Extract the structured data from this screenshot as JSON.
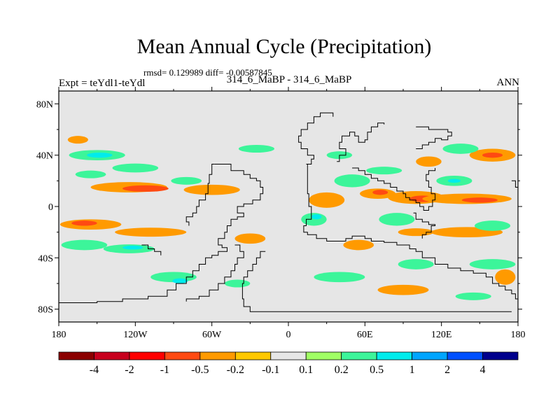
{
  "title": "Mean Annual Cycle (Precipitation)",
  "stats": "rmsd= 0.129989 diff= -0.00587845",
  "left_label": "Expt = teYdl1-teYdl",
  "center_label": "314_6_MaBP - 314_6_MaBP",
  "right_label": "ANN",
  "colors": {
    "background_fill": "#e6e6e6",
    "coast": "#000000"
  },
  "chart_data": {
    "type": "heatmap",
    "title": "Mean Annual Cycle (Precipitation)",
    "lon_range": [
      -180,
      180
    ],
    "lat_range": [
      -90,
      90
    ],
    "lon_ticks": [
      -180,
      -120,
      -60,
      0,
      60,
      120,
      180
    ],
    "lon_tick_labels": [
      "180",
      "120W",
      "60W",
      "0",
      "60E",
      "120E",
      "180"
    ],
    "lat_ticks": [
      80,
      40,
      0,
      -40,
      -80
    ],
    "lat_tick_labels": [
      "80N",
      "40N",
      "0",
      "40S",
      "80S"
    ],
    "colorbar": {
      "labels": [
        "-4",
        "-2",
        "-1",
        "-0.5",
        "-0.2",
        "-0.1",
        "0.1",
        "0.2",
        "0.5",
        "1",
        "2",
        "4"
      ],
      "colors": [
        "#8b0000",
        "#c8001e",
        "#ff0000",
        "#ff4a12",
        "#ff9a00",
        "#ffc800",
        "#e6e6e6",
        "#a0ff64",
        "#3cf59a",
        "#00ecec",
        "#00a5ff",
        "#0050ff",
        "#00008c"
      ]
    },
    "anomaly_regions": [
      {
        "label": "-0.2",
        "lon": -125,
        "lat": 15,
        "rx": 30,
        "ry": 4
      },
      {
        "label": "-0.5",
        "lon": -112,
        "lat": 14,
        "rx": 18,
        "ry": 2.5
      },
      {
        "label": "-0.2",
        "lon": -60,
        "lat": 13,
        "rx": 22,
        "ry": 4
      },
      {
        "label": "-0.2",
        "lon": -155,
        "lat": -14,
        "rx": 24,
        "ry": 4
      },
      {
        "label": "-0.5",
        "lon": -160,
        "lat": -13,
        "rx": 10,
        "ry": 2
      },
      {
        "label": "-0.2",
        "lon": -108,
        "lat": -20,
        "rx": 28,
        "ry": 3.5
      },
      {
        "label": "-0.2",
        "lon": -165,
        "lat": 52,
        "rx": 8,
        "ry": 3
      },
      {
        "label": "0.2",
        "lon": -150,
        "lat": 40,
        "rx": 22,
        "ry": 4
      },
      {
        "label": "0.5",
        "lon": -148,
        "lat": 40,
        "rx": 10,
        "ry": 2
      },
      {
        "label": "0.2",
        "lon": -120,
        "lat": 30,
        "rx": 18,
        "ry": 3.5
      },
      {
        "label": "0.2",
        "lon": -155,
        "lat": 25,
        "rx": 12,
        "ry": 3
      },
      {
        "label": "0.2",
        "lon": -160,
        "lat": -30,
        "rx": 18,
        "ry": 4
      },
      {
        "label": "0.2",
        "lon": -125,
        "lat": -33,
        "rx": 20,
        "ry": 3.5
      },
      {
        "label": "0.5",
        "lon": -122,
        "lat": -32,
        "rx": 8,
        "ry": 1.5
      },
      {
        "label": "0.2",
        "lon": -80,
        "lat": 20,
        "rx": 12,
        "ry": 3
      },
      {
        "label": "0.2",
        "lon": -90,
        "lat": -55,
        "rx": 18,
        "ry": 4
      },
      {
        "label": "0.5",
        "lon": -85,
        "lat": -58,
        "rx": 6,
        "ry": 2
      },
      {
        "label": "0.2",
        "lon": -40,
        "lat": -60,
        "rx": 10,
        "ry": 3
      },
      {
        "label": "0.2",
        "lon": -25,
        "lat": 45,
        "rx": 14,
        "ry": 3
      },
      {
        "label": "-0.2",
        "lon": -30,
        "lat": -25,
        "rx": 12,
        "ry": 4
      },
      {
        "label": "-0.2",
        "lon": 30,
        "lat": 5,
        "rx": 14,
        "ry": 6
      },
      {
        "label": "0.2",
        "lon": 20,
        "lat": -10,
        "rx": 10,
        "ry": 5
      },
      {
        "label": "0.5",
        "lon": 22,
        "lat": -8,
        "rx": 4,
        "ry": 2
      },
      {
        "label": "0.2",
        "lon": 50,
        "lat": 20,
        "rx": 14,
        "ry": 5
      },
      {
        "label": "-0.2",
        "lon": 70,
        "lat": 10,
        "rx": 14,
        "ry": 4
      },
      {
        "label": "-0.5",
        "lon": 72,
        "lat": 11,
        "rx": 6,
        "ry": 2
      },
      {
        "label": "0.2",
        "lon": 85,
        "lat": -10,
        "rx": 14,
        "ry": 5
      },
      {
        "label": "0.2",
        "lon": 75,
        "lat": 28,
        "rx": 14,
        "ry": 3
      },
      {
        "label": "-0.2",
        "lon": 100,
        "lat": 7,
        "rx": 22,
        "ry": 5
      },
      {
        "label": "-0.5",
        "lon": 105,
        "lat": 6,
        "rx": 10,
        "ry": 2.5
      },
      {
        "label": "-0.2",
        "lon": 140,
        "lat": 6,
        "rx": 35,
        "ry": 4
      },
      {
        "label": "-0.5",
        "lon": 150,
        "lat": 5,
        "rx": 14,
        "ry": 2
      },
      {
        "label": "-0.2",
        "lon": 160,
        "lat": 40,
        "rx": 18,
        "ry": 5
      },
      {
        "label": "-0.5",
        "lon": 160,
        "lat": 40,
        "rx": 8,
        "ry": 2
      },
      {
        "label": "0.2",
        "lon": 135,
        "lat": 45,
        "rx": 14,
        "ry": 4
      },
      {
        "label": "0.2",
        "lon": 130,
        "lat": 20,
        "rx": 14,
        "ry": 4
      },
      {
        "label": "0.5",
        "lon": 130,
        "lat": 20,
        "rx": 5,
        "ry": 1.5
      },
      {
        "label": "-0.2",
        "lon": 110,
        "lat": 35,
        "rx": 10,
        "ry": 4
      },
      {
        "label": "-0.2",
        "lon": 140,
        "lat": -20,
        "rx": 28,
        "ry": 4
      },
      {
        "label": "0.2",
        "lon": 160,
        "lat": -15,
        "rx": 14,
        "ry": 4
      },
      {
        "label": "-0.2",
        "lon": 100,
        "lat": -20,
        "rx": 14,
        "ry": 3
      },
      {
        "label": "0.2",
        "lon": 100,
        "lat": -45,
        "rx": 14,
        "ry": 4
      },
      {
        "label": "0.2",
        "lon": 160,
        "lat": -45,
        "rx": 18,
        "ry": 4
      },
      {
        "label": "-0.2",
        "lon": 55,
        "lat": -30,
        "rx": 12,
        "ry": 4
      },
      {
        "label": "0.2",
        "lon": 40,
        "lat": -55,
        "rx": 20,
        "ry": 4
      },
      {
        "label": "-0.2",
        "lon": 90,
        "lat": -65,
        "rx": 20,
        "ry": 4
      },
      {
        "label": "-0.2",
        "lon": 170,
        "lat": -55,
        "rx": 8,
        "ry": 6
      },
      {
        "label": "0.2",
        "lon": 145,
        "lat": -70,
        "rx": 14,
        "ry": 3
      },
      {
        "label": "0.2",
        "lon": 40,
        "lat": 40,
        "rx": 10,
        "ry": 3
      }
    ]
  },
  "coastlines": [
    [
      [
        -58,
        33
      ],
      [
        -50,
        33
      ],
      [
        -45,
        28
      ],
      [
        -40,
        28
      ],
      [
        -35,
        25
      ],
      [
        -30,
        22
      ],
      [
        -25,
        20
      ],
      [
        -22,
        15
      ],
      [
        -20,
        10
      ],
      [
        -22,
        5
      ],
      [
        -28,
        2
      ],
      [
        -35,
        0
      ],
      [
        -40,
        -5
      ],
      [
        -35,
        -8
      ],
      [
        -40,
        -10
      ],
      [
        -45,
        -15
      ],
      [
        -48,
        -20
      ],
      [
        -50,
        -25
      ],
      [
        -55,
        -30
      ],
      [
        -52,
        -32
      ],
      [
        -48,
        -35
      ],
      [
        -55,
        -38
      ],
      [
        -60,
        -40
      ],
      [
        -65,
        -45
      ],
      [
        -70,
        -50
      ],
      [
        -75,
        -55
      ],
      [
        -80,
        -60
      ],
      [
        -88,
        -65
      ],
      [
        -95,
        -70
      ],
      [
        -110,
        -72
      ],
      [
        -130,
        -74
      ],
      [
        -150,
        -75
      ],
      [
        -180,
        -78
      ]
    ],
    [
      [
        -58,
        33
      ],
      [
        -60,
        25
      ],
      [
        -62,
        18
      ],
      [
        -63,
        10
      ],
      [
        -65,
        5
      ],
      [
        -70,
        0
      ],
      [
        -72,
        -5
      ],
      [
        -75,
        -8
      ],
      [
        -80,
        -12
      ],
      [
        -78,
        -15
      ]
    ],
    [
      [
        -42,
        -30
      ],
      [
        -38,
        -35
      ],
      [
        -35,
        -40
      ],
      [
        -40,
        -45
      ],
      [
        -42,
        -50
      ],
      [
        -45,
        -55
      ],
      [
        -50,
        -60
      ],
      [
        -55,
        -65
      ],
      [
        -62,
        -70
      ],
      [
        -70,
        -72
      ],
      [
        -80,
        -74
      ]
    ],
    [
      [
        -18,
        -35
      ],
      [
        -22,
        -40
      ],
      [
        -25,
        -45
      ],
      [
        -28,
        -50
      ],
      [
        -32,
        -55
      ],
      [
        -35,
        -60
      ],
      [
        -36,
        -65
      ],
      [
        -36,
        -72
      ],
      [
        -35,
        -78
      ],
      [
        -30,
        -82
      ],
      [
        -10,
        -82
      ],
      [
        20,
        -82
      ],
      [
        60,
        -82
      ],
      [
        120,
        -82
      ],
      [
        175,
        -82
      ]
    ],
    [
      [
        14,
        33
      ],
      [
        15,
        30
      ],
      [
        15,
        10
      ],
      [
        16,
        0
      ],
      [
        18,
        -5
      ],
      [
        18,
        -10
      ],
      [
        14,
        -15
      ],
      [
        12,
        -20
      ],
      [
        15,
        -22
      ],
      [
        22,
        -25
      ],
      [
        30,
        -27
      ],
      [
        38,
        -27
      ],
      [
        45,
        -25
      ],
      [
        50,
        -23
      ],
      [
        55,
        -23
      ],
      [
        60,
        -25
      ],
      [
        65,
        -27
      ],
      [
        75,
        -28
      ],
      [
        85,
        -30
      ],
      [
        95,
        -33
      ],
      [
        100,
        -35
      ],
      [
        105,
        -40
      ],
      [
        115,
        -45
      ],
      [
        125,
        -48
      ],
      [
        135,
        -50
      ],
      [
        145,
        -52
      ],
      [
        155,
        -55
      ],
      [
        160,
        -60
      ],
      [
        165,
        -62
      ],
      [
        170,
        -65
      ],
      [
        175,
        -68
      ],
      [
        178,
        -72
      ],
      [
        180,
        -78
      ]
    ],
    [
      [
        14,
        33
      ],
      [
        18,
        37
      ],
      [
        20,
        40
      ],
      [
        15,
        45
      ],
      [
        10,
        50
      ],
      [
        8,
        55
      ],
      [
        10,
        60
      ],
      [
        15,
        65
      ],
      [
        20,
        70
      ],
      [
        25,
        73
      ],
      [
        30,
        73
      ],
      [
        35,
        70
      ]
    ],
    [
      [
        38,
        35
      ],
      [
        40,
        40
      ],
      [
        45,
        45
      ],
      [
        40,
        50
      ],
      [
        42,
        55
      ],
      [
        48,
        58
      ],
      [
        52,
        55
      ],
      [
        55,
        50
      ],
      [
        60,
        52
      ],
      [
        62,
        58
      ],
      [
        65,
        62
      ],
      [
        70,
        65
      ],
      [
        75,
        64
      ]
    ],
    [
      [
        50,
        30
      ],
      [
        55,
        28
      ],
      [
        60,
        25
      ],
      [
        65,
        22
      ],
      [
        70,
        20
      ],
      [
        75,
        18
      ],
      [
        80,
        15
      ],
      [
        85,
        12
      ],
      [
        90,
        10
      ],
      [
        92,
        7
      ],
      [
        95,
        5
      ],
      [
        100,
        3
      ],
      [
        103,
        0
      ],
      [
        106,
        -3
      ],
      [
        110,
        0
      ],
      [
        113,
        5
      ],
      [
        115,
        10
      ],
      [
        112,
        15
      ],
      [
        110,
        20
      ],
      [
        108,
        25
      ],
      [
        110,
        28
      ],
      [
        115,
        30
      ]
    ],
    [
      [
        100,
        45
      ],
      [
        105,
        48
      ],
      [
        110,
        50
      ],
      [
        115,
        53
      ],
      [
        120,
        52
      ],
      [
        125,
        55
      ],
      [
        128,
        58
      ],
      [
        125,
        60
      ],
      [
        120,
        60
      ],
      [
        110,
        62
      ],
      [
        100,
        62
      ]
    ],
    [
      [
        98,
        -5
      ],
      [
        100,
        -10
      ],
      [
        105,
        -12
      ],
      [
        110,
        -14
      ],
      [
        115,
        -15
      ],
      [
        112,
        -20
      ],
      [
        108,
        -22
      ],
      [
        105,
        -25
      ]
    ],
    [
      [
        175,
        20
      ],
      [
        178,
        15
      ],
      [
        180,
        10
      ]
    ],
    [
      [
        -115,
        -30
      ],
      [
        -110,
        -33
      ],
      [
        -105,
        -35
      ],
      [
        -100,
        -38
      ]
    ]
  ]
}
